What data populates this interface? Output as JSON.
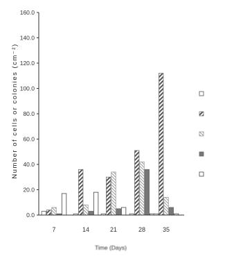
{
  "chart_data": {
    "type": "bar",
    "title": "",
    "xlabel": "Time (Days)",
    "ylabel": "Number of cells or colonies (cm⁻²)",
    "ylim": [
      0,
      160
    ],
    "yticks": [
      "0.0",
      "20.0",
      "40.0",
      "60.0",
      "80.0",
      "100.0",
      "120.0",
      "140.0",
      "160.0"
    ],
    "categories": [
      "7",
      "14",
      "21",
      "28",
      "35"
    ],
    "legend_position": "right",
    "series": [
      {
        "name": "",
        "pattern": "open",
        "values": [
          3,
          1,
          1,
          1,
          1
        ]
      },
      {
        "name": "",
        "pattern": "diagonal",
        "values": [
          4,
          36,
          30,
          51,
          112
        ]
      },
      {
        "name": "",
        "pattern": "stripes",
        "values": [
          6,
          8,
          34,
          42,
          14
        ]
      },
      {
        "name": "",
        "pattern": "solid-grey",
        "values": [
          1,
          3,
          5,
          36,
          6
        ]
      },
      {
        "name": "",
        "pattern": "open-boxed",
        "values": [
          17,
          18,
          6,
          1,
          1
        ]
      }
    ]
  }
}
